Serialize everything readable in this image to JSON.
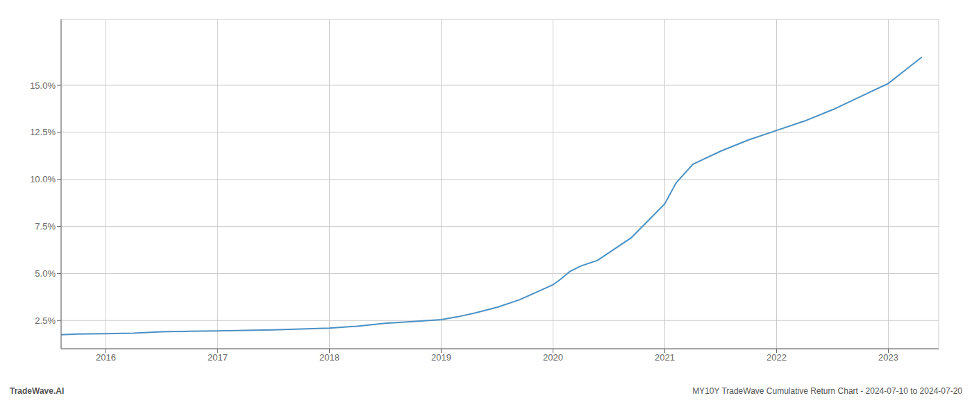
{
  "chart_data": {
    "type": "line",
    "annotations": [
      "TradeWave.AI",
      "MY10Y TradeWave Cumulative Return Chart - 2024-07-10 to 2024-07-20"
    ],
    "color": "#4a90c4",
    "grid": true,
    "x": [
      2015.6,
      2015.75,
      2016.0,
      2016.25,
      2016.5,
      2016.75,
      2017.0,
      2017.25,
      2017.5,
      2017.75,
      2018.0,
      2018.25,
      2018.5,
      2018.75,
      2019.0,
      2019.15,
      2019.3,
      2019.5,
      2019.7,
      2019.85,
      2020.0,
      2020.07,
      2020.15,
      2020.25,
      2020.4,
      2020.55,
      2020.7,
      2020.85,
      2021.0,
      2021.1,
      2021.25,
      2021.5,
      2021.75,
      2022.0,
      2022.25,
      2022.5,
      2022.75,
      2023.0,
      2023.15,
      2023.3
    ],
    "values": [
      0.0175,
      0.0178,
      0.018,
      0.0183,
      0.019,
      0.0193,
      0.0195,
      0.0198,
      0.02,
      0.0205,
      0.021,
      0.022,
      0.0235,
      0.0245,
      0.0255,
      0.027,
      0.029,
      0.032,
      0.036,
      0.04,
      0.044,
      0.047,
      0.051,
      0.054,
      0.057,
      0.063,
      0.069,
      0.078,
      0.087,
      0.098,
      0.108,
      0.115,
      0.121,
      0.126,
      0.131,
      0.137,
      0.144,
      0.151,
      0.158,
      0.165
    ],
    "xlim": [
      2015.6,
      2023.45
    ],
    "xticks": [
      2016,
      2017,
      2018,
      2019,
      2020,
      2021,
      2022,
      2023
    ],
    "ylim": [
      0.01,
      0.185
    ],
    "yticks": [
      {
        "value": 0.025,
        "label": "2.5%"
      },
      {
        "value": 0.05,
        "label": "5.0%"
      },
      {
        "value": 0.075,
        "label": "7.5%"
      },
      {
        "value": 0.1,
        "label": "10.0%"
      },
      {
        "value": 0.125,
        "label": "12.5%"
      },
      {
        "value": 0.15,
        "label": "15.0%"
      }
    ]
  }
}
